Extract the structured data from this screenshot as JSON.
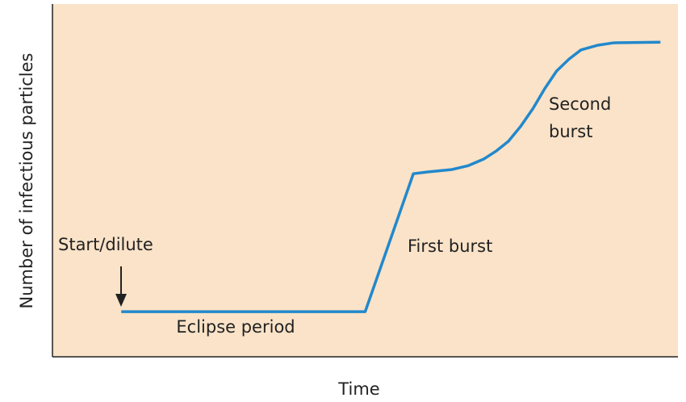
{
  "chart_data": {
    "type": "line",
    "xlabel": "Time",
    "ylabel": "Number of infectious particles",
    "xlim": [
      0,
      100
    ],
    "ylim": [
      0,
      100
    ],
    "series": [
      {
        "color": "#2288cc",
        "x": [
          11,
          50,
          57.7,
          60,
          63.9,
          66.5,
          69,
          71,
          72.9,
          74.8,
          76.8,
          78.7,
          80.6,
          82.6,
          84.5,
          87.1,
          89.7,
          97.2
        ],
        "values": [
          12.8,
          12.8,
          51.9,
          52.4,
          53.1,
          54.2,
          56.1,
          58.4,
          61.1,
          65.2,
          70.3,
          76,
          81,
          84.4,
          87,
          88.3,
          89,
          89.2
        ]
      }
    ],
    "annotations": [
      {
        "lines": [
          "Start/dilute"
        ]
      },
      {
        "lines": [
          "Eclipse period"
        ]
      },
      {
        "lines": [
          "First burst"
        ]
      },
      {
        "lines": [
          "Second",
          "burst"
        ]
      }
    ],
    "background": "#fae3c8"
  }
}
